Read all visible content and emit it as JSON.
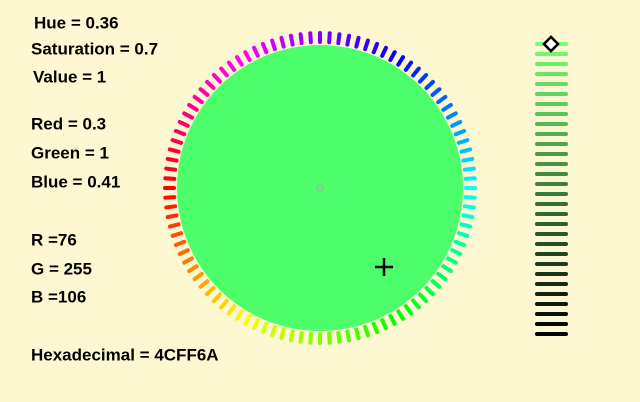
{
  "labels": {
    "hue": "Hue = 0.36",
    "saturation": "Saturation = 0.7",
    "value": "Value = 1",
    "red": "Red = 0.3",
    "green": "Green = 1",
    "blue": "Blue = 0.41",
    "r": "R =76",
    "g": "G = 255",
    "b": "B =106",
    "hex": "Hexadecimal = 4CFF6A"
  }
}
